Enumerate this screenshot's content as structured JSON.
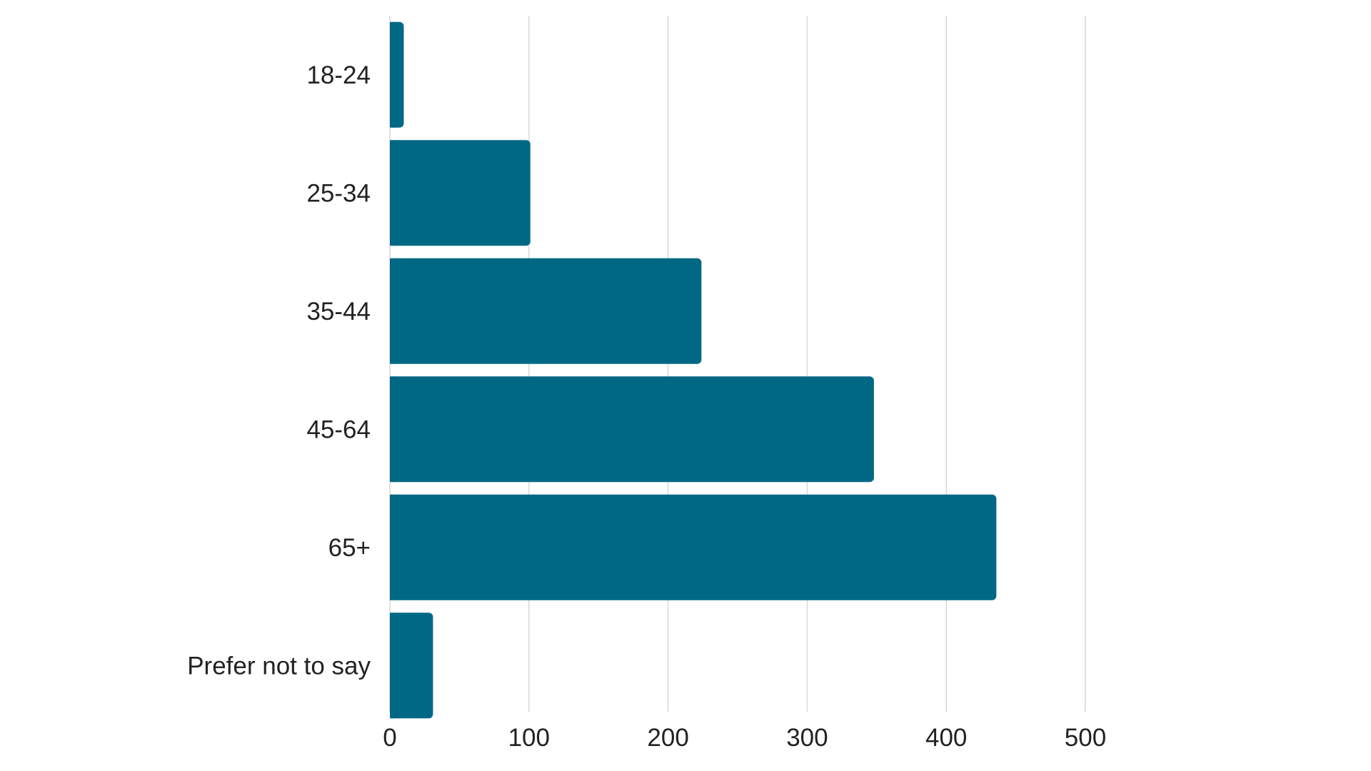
{
  "chart_data": {
    "type": "bar",
    "orientation": "horizontal",
    "categories": [
      "18-24",
      "25-34",
      "35-44",
      "45-64",
      "65+",
      "Prefer not to say"
    ],
    "values": [
      10,
      101,
      224,
      348,
      436,
      31
    ],
    "title": "",
    "xlabel": "",
    "ylabel": "",
    "xlim": [
      0,
      500
    ],
    "xticks": [
      "0",
      "100",
      "200",
      "300",
      "400",
      "500"
    ],
    "grid": "vertical",
    "legend": "none",
    "bar_color": "#006885"
  }
}
